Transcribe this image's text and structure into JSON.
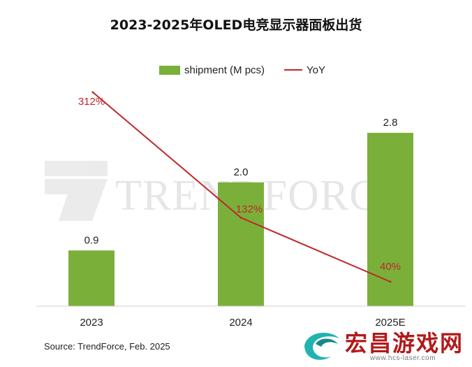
{
  "title": "2023-2025年OLED电竞显示器面板出货",
  "legend": {
    "bar_label": "shipment (M pcs)",
    "line_label": "YoY"
  },
  "colors": {
    "bar": "#7ab03a",
    "line": "#c0282a",
    "yoy_label": "#c0282a",
    "watermark": "#d9d9d9"
  },
  "chart_data": {
    "type": "bar+line",
    "categories": [
      "2023",
      "2024",
      "2025E"
    ],
    "series": [
      {
        "name": "shipment (M pcs)",
        "type": "bar",
        "values": [
          0.9,
          2.0,
          2.8
        ],
        "labels": [
          "0.9",
          "2.0",
          "2.8"
        ]
      },
      {
        "name": "YoY",
        "type": "line",
        "values": [
          312,
          132,
          40
        ],
        "labels": [
          "312%",
          "132%",
          "40%"
        ]
      }
    ],
    "bar_axis_range": [
      0,
      3.5
    ],
    "line_axis_range": [
      0,
      400
    ],
    "gridlines": false
  },
  "watermark_text": "TRENDFORCE",
  "source": "Source: TrendForce, Feb. 2025",
  "overlay": {
    "brand": "宏昌游戏网",
    "url": "www.hcs-laser.com"
  }
}
